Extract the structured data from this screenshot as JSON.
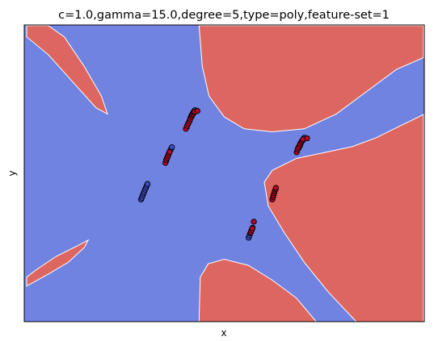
{
  "chart_data": {
    "type": "scatter",
    "title": "c=1.0,gamma=15.0,degree=5,type=poly,feature-set=1",
    "xlabel": "x",
    "ylabel": "y",
    "x_ticks": [],
    "y_ticks": [],
    "grid": false,
    "legend": "none",
    "xlim": [
      0,
      1
    ],
    "ylim": [
      0,
      1
    ],
    "colors": {
      "region_positive": "#dd6660",
      "region_negative": "#7083e0",
      "point_positive": "#b40426",
      "point_negative": "#3b4cc0",
      "point_edge": "#000000",
      "boundary": "#ffffff"
    },
    "background_regions": [
      {
        "class": "positive",
        "points": [
          [
            0.006,
            0.998
          ],
          [
            0.06,
            0.998
          ],
          [
            0.1,
            0.96
          ],
          [
            0.15,
            0.86
          ],
          [
            0.193,
            0.76
          ],
          [
            0.208,
            0.7
          ],
          [
            0.18,
            0.72
          ],
          [
            0.12,
            0.81
          ],
          [
            0.06,
            0.9
          ],
          [
            0.006,
            0.96
          ]
        ]
      },
      {
        "class": "positive",
        "points": [
          [
            0.437,
            0.998
          ],
          [
            0.998,
            0.998
          ],
          [
            0.998,
            0.89
          ],
          [
            0.93,
            0.85
          ],
          [
            0.85,
            0.77
          ],
          [
            0.78,
            0.7
          ],
          [
            0.7,
            0.65
          ],
          [
            0.62,
            0.64
          ],
          [
            0.55,
            0.65
          ],
          [
            0.5,
            0.69
          ],
          [
            0.462,
            0.76
          ],
          [
            0.445,
            0.86
          ]
        ]
      },
      {
        "class": "positive",
        "points": [
          [
            0.998,
            0.698
          ],
          [
            0.998,
            0.0
          ],
          [
            0.83,
            0.0
          ],
          [
            0.76,
            0.1
          ],
          [
            0.7,
            0.2
          ],
          [
            0.65,
            0.3
          ],
          [
            0.61,
            0.39
          ],
          [
            0.6,
            0.47
          ],
          [
            0.62,
            0.51
          ],
          [
            0.68,
            0.55
          ],
          [
            0.75,
            0.57
          ],
          [
            0.82,
            0.59
          ],
          [
            0.88,
            0.62
          ],
          [
            0.94,
            0.66
          ]
        ]
      },
      {
        "class": "positive",
        "points": [
          [
            0.006,
            0.15
          ],
          [
            0.03,
            0.175
          ],
          [
            0.08,
            0.22
          ],
          [
            0.135,
            0.257
          ],
          [
            0.16,
            0.275
          ],
          [
            0.15,
            0.25
          ],
          [
            0.11,
            0.2
          ],
          [
            0.06,
            0.16
          ],
          [
            0.006,
            0.12
          ]
        ]
      },
      {
        "class": "positive",
        "points": [
          [
            0.437,
            0.0
          ],
          [
            0.44,
            0.15
          ],
          [
            0.46,
            0.195
          ],
          [
            0.5,
            0.21
          ],
          [
            0.56,
            0.19
          ],
          [
            0.62,
            0.14
          ],
          [
            0.68,
            0.08
          ],
          [
            0.73,
            0.0
          ]
        ]
      }
    ],
    "series": [
      {
        "class": "negative",
        "x": [
          0.406,
          0.409,
          0.412,
          0.414,
          0.416,
          0.418,
          0.421,
          0.423,
          0.425,
          0.427
        ],
        "y": [
          0.655,
          0.665,
          0.673,
          0.68,
          0.688,
          0.695,
          0.701,
          0.706,
          0.71,
          0.713
        ]
      },
      {
        "class": "positive",
        "x": [
          0.404,
          0.407,
          0.41,
          0.413,
          0.415,
          0.418,
          0.42,
          0.422,
          0.424,
          0.426,
          0.433
        ],
        "y": [
          0.65,
          0.66,
          0.668,
          0.675,
          0.683,
          0.69,
          0.696,
          0.7,
          0.705,
          0.708,
          0.71
        ]
      },
      {
        "class": "negative",
        "x": [
          0.355,
          0.357,
          0.359,
          0.361,
          0.363,
          0.365,
          0.367,
          0.369
        ],
        "y": [
          0.542,
          0.552,
          0.558,
          0.565,
          0.571,
          0.577,
          0.582,
          0.588
        ]
      },
      {
        "class": "positive",
        "x": [
          0.353,
          0.355,
          0.357,
          0.359,
          0.361,
          0.363
        ],
        "y": [
          0.535,
          0.545,
          0.551,
          0.558,
          0.565,
          0.572
        ]
      },
      {
        "class": "negative",
        "x": [
          0.292,
          0.294,
          0.296,
          0.298,
          0.3,
          0.302,
          0.304,
          0.306,
          0.308
        ],
        "y": [
          0.412,
          0.418,
          0.425,
          0.432,
          0.438,
          0.445,
          0.451,
          0.458,
          0.464
        ]
      },
      {
        "class": "negative",
        "x": [
          0.686,
          0.689,
          0.691,
          0.693,
          0.696,
          0.698,
          0.7
        ],
        "y": [
          0.585,
          0.593,
          0.6,
          0.606,
          0.611,
          0.616,
          0.62
        ]
      },
      {
        "class": "positive",
        "x": [
          0.681,
          0.683,
          0.685,
          0.688,
          0.69,
          0.693,
          0.695,
          0.697,
          0.707
        ],
        "y": [
          0.571,
          0.58,
          0.587,
          0.594,
          0.6,
          0.606,
          0.611,
          0.615,
          0.618
        ]
      },
      {
        "class": "positive",
        "x": [
          0.62,
          0.622,
          0.623,
          0.625,
          0.626,
          0.628,
          0.629
        ],
        "y": [
          0.412,
          0.42,
          0.427,
          0.434,
          0.44,
          0.446,
          0.451
        ]
      },
      {
        "class": "negative",
        "x": [
          0.561,
          0.563,
          0.565,
          0.567,
          0.569,
          0.571
        ],
        "y": [
          0.283,
          0.291,
          0.298,
          0.305,
          0.311,
          0.316
        ]
      },
      {
        "class": "positive",
        "x": [
          0.566,
          0.568,
          0.57,
          0.574
        ],
        "y": [
          0.3,
          0.307,
          0.314,
          0.337
        ]
      }
    ]
  }
}
